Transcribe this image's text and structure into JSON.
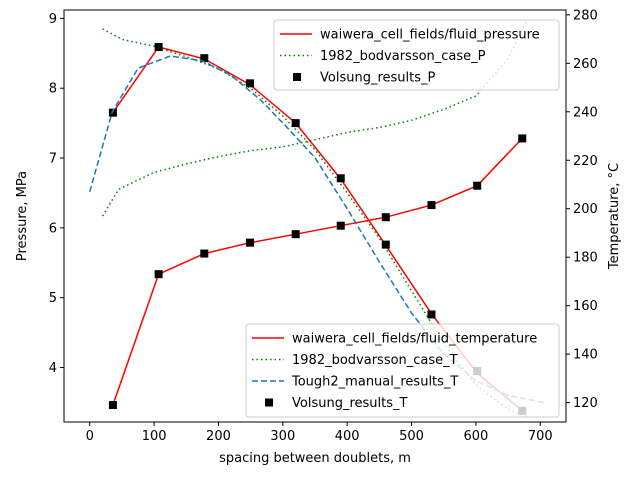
{
  "chart_data": {
    "type": "line",
    "xlabel": "spacing between doublets, m",
    "ylabel_left": "Pressure, MPa",
    "ylabel_right": "Temperature, °C",
    "xlim": [
      -40,
      740
    ],
    "ylim_left": [
      3.22,
      9.12
    ],
    "ylim_right": [
      112,
      282
    ],
    "x_ticks": [
      0,
      100,
      200,
      300,
      400,
      500,
      600,
      700
    ],
    "y_left_ticks": [
      4,
      5,
      6,
      7,
      8,
      9
    ],
    "y_right_ticks": [
      120,
      140,
      160,
      180,
      200,
      220,
      240,
      260,
      280
    ],
    "grid": false,
    "legends": [
      {
        "placement": "upper-right",
        "entries": [
          {
            "label": "waiwera_cell_fields/fluid_pressure",
            "series": "p_waiwera"
          },
          {
            "label": "1982_bodvarsson_case_P",
            "series": "p_bodvarsson"
          },
          {
            "label": "Volsung_results_P",
            "series": "p_volsung"
          }
        ]
      },
      {
        "placement": "lower-right",
        "entries": [
          {
            "label": "waiwera_cell_fields/fluid_temperature",
            "series": "t_waiwera"
          },
          {
            "label": "1982_bodvarsson_case_T",
            "series": "t_bodvarsson"
          },
          {
            "label": "Tough2_manual_results_T",
            "series": "t_tough2"
          },
          {
            "label": "Volsung_results_T",
            "series": "t_volsung"
          }
        ]
      }
    ],
    "series": [
      {
        "id": "p_waiwera",
        "name": "waiwera_cell_fields/fluid_pressure",
        "axis": "left",
        "style": "solid",
        "color": "#ff0000",
        "x": [
          36,
          107,
          178,
          249,
          320,
          390,
          460,
          531,
          602,
          672
        ],
        "y": [
          7.65,
          8.59,
          8.42,
          8.05,
          7.5,
          6.7,
          5.75,
          4.77,
          3.92,
          3.38
        ]
      },
      {
        "id": "p_bodvarsson",
        "name": "1982_bodvarsson_case_P",
        "axis": "left",
        "style": "dotted",
        "color": "#008000",
        "x": [
          20,
          50,
          100,
          150,
          200,
          250,
          300,
          350,
          400,
          450,
          500,
          550,
          600,
          650,
          680
        ],
        "y": [
          8.85,
          8.7,
          8.6,
          8.45,
          8.28,
          8.0,
          7.6,
          7.12,
          6.5,
          5.85,
          5.1,
          4.35,
          3.75,
          3.4,
          3.3
        ]
      },
      {
        "id": "p_volsung",
        "name": "Volsung_results_P",
        "axis": "left",
        "style": "marker",
        "color": "#000000",
        "x": [
          36,
          107,
          178,
          249,
          320,
          390,
          460,
          531,
          602,
          672
        ],
        "y": [
          7.65,
          8.59,
          8.43,
          8.07,
          7.5,
          6.71,
          5.76,
          4.76,
          3.95,
          3.38
        ]
      },
      {
        "id": "t_waiwera",
        "name": "waiwera_cell_fields/fluid_temperature",
        "axis": "right",
        "style": "solid",
        "color": "#ff0000",
        "x": [
          36,
          107,
          178,
          249,
          320,
          390,
          460,
          531,
          602,
          672
        ],
        "y": [
          119,
          173,
          181.5,
          186,
          189.5,
          193,
          196.5,
          201.5,
          209.5,
          229
        ]
      },
      {
        "id": "t_bodvarsson",
        "name": "1982_bodvarsson_case_T",
        "axis": "right",
        "style": "dotted",
        "color": "#008000",
        "x": [
          20,
          45,
          100,
          150,
          200,
          250,
          300,
          350,
          400,
          450,
          500,
          550,
          600,
          650,
          680
        ],
        "y": [
          197,
          208,
          215,
          218.5,
          221.5,
          224,
          225.5,
          228.5,
          231.5,
          233.5,
          236.5,
          241,
          246.5,
          262,
          278
        ]
      },
      {
        "id": "t_tough2",
        "name": "Tough2_manual_results_T",
        "axis": "right",
        "style": "dashed",
        "color": "#1f77b4",
        "x": [
          0,
          35,
          75,
          125,
          175,
          220,
          265,
          305,
          350,
          400,
          450,
          500,
          550,
          600,
          650,
          705
        ],
        "y": [
          207,
          240,
          258,
          263,
          261,
          255,
          245,
          234,
          221,
          200,
          178,
          157,
          140,
          129,
          123,
          120
        ]
      },
      {
        "id": "t_volsung",
        "name": "Volsung_results_T",
        "axis": "right",
        "style": "marker",
        "color": "#000000",
        "x": [
          36,
          107,
          178,
          249,
          320,
          390,
          460,
          531,
          602,
          672
        ],
        "y": [
          119,
          173,
          181.5,
          186,
          189.5,
          193,
          196.5,
          201.5,
          209.5,
          229
        ]
      }
    ]
  }
}
